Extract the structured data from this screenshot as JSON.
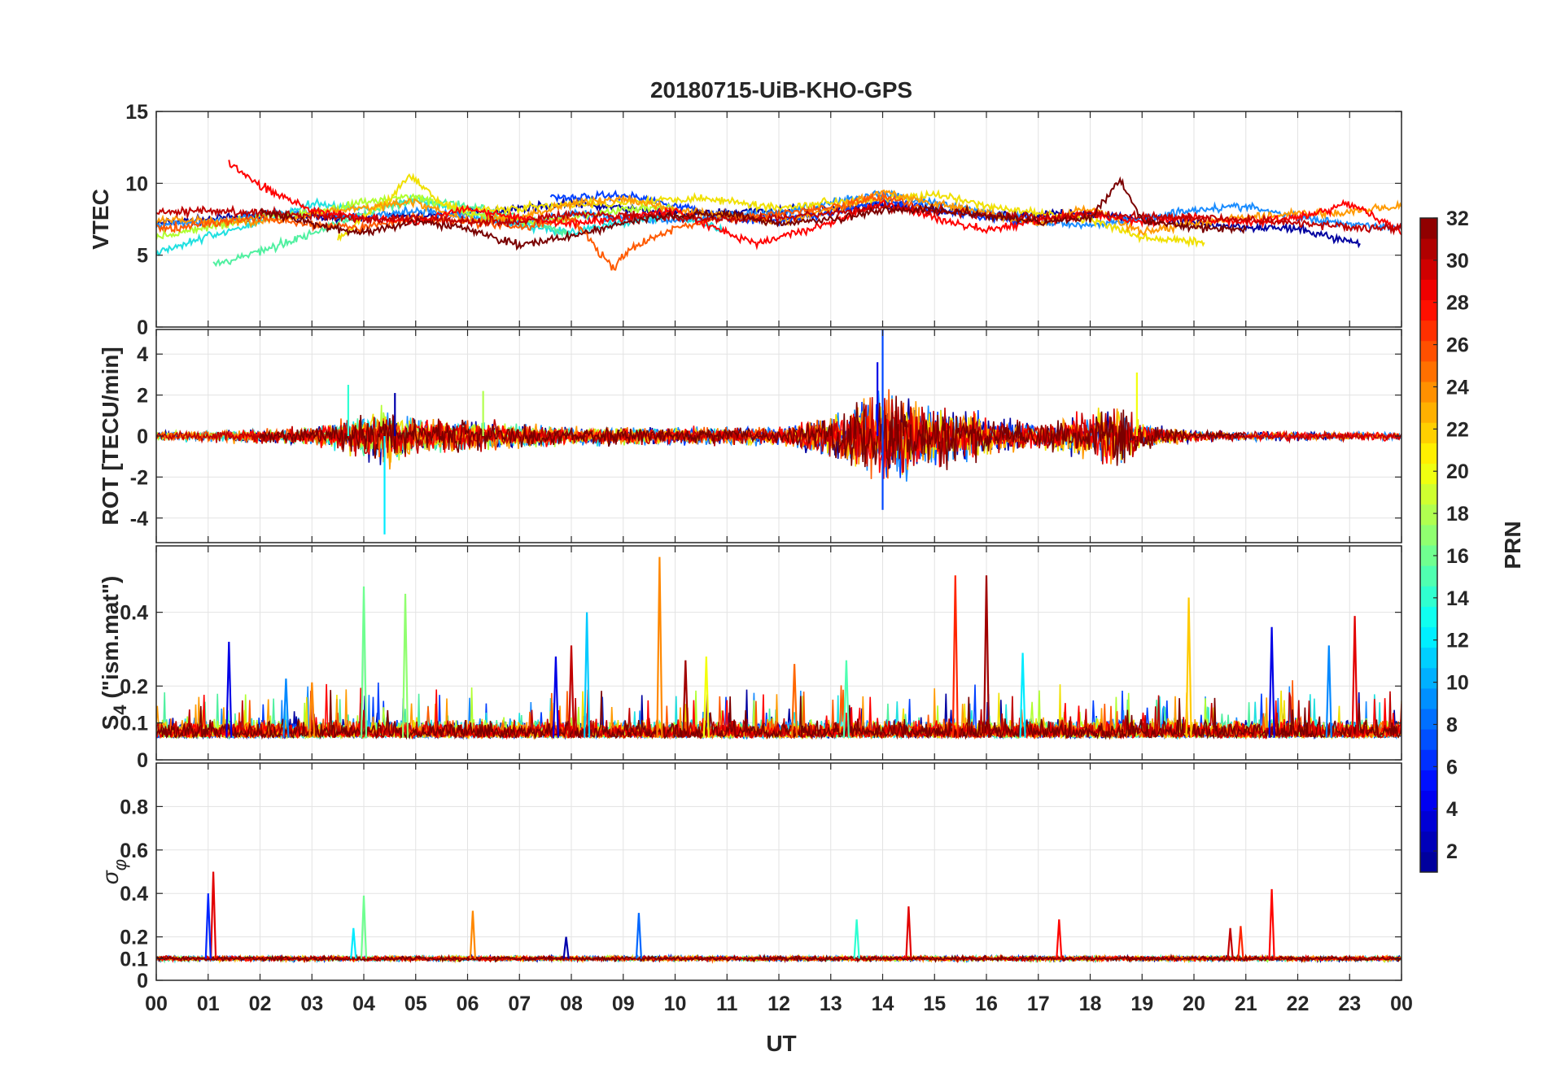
{
  "chart_data": {
    "type": "line",
    "title": "20180715-UiB-KHO-GPS",
    "xlabel": "UT",
    "x_ticks": [
      "00",
      "01",
      "02",
      "03",
      "04",
      "05",
      "06",
      "07",
      "08",
      "09",
      "10",
      "11",
      "12",
      "13",
      "14",
      "15",
      "16",
      "17",
      "18",
      "19",
      "20",
      "21",
      "22",
      "23",
      "00"
    ],
    "xlim": [
      0,
      24
    ],
    "grid": true,
    "colorbar": {
      "label": "PRN",
      "range": [
        1,
        32
      ],
      "ticks": [
        "2",
        "4",
        "6",
        "8",
        "10",
        "12",
        "14",
        "16",
        "18",
        "20",
        "22",
        "24",
        "26",
        "28",
        "30",
        "32"
      ],
      "tick_values": [
        2,
        4,
        6,
        8,
        10,
        12,
        14,
        16,
        18,
        20,
        22,
        24,
        26,
        28,
        30,
        32
      ],
      "colormap": [
        "#00008f",
        "#0000ff",
        "#0080ff",
        "#00ffff",
        "#80ff80",
        "#ffff00",
        "#ff8000",
        "#ff0000",
        "#800000"
      ]
    },
    "panels": [
      {
        "id": "vtec",
        "ylabel": "VTEC",
        "ylim": [
          0,
          15
        ],
        "y_ticks": [
          0,
          5,
          10,
          15
        ],
        "y_tick_labels": [
          "0",
          "5",
          "10",
          "15"
        ],
        "series": [
          {
            "prn": 1,
            "color": "#0000a0",
            "x": [
              0,
              2,
              4,
              6,
              8,
              10,
              12,
              14,
              16,
              18,
              20,
              22,
              23.2
            ],
            "y": [
              7.2,
              7.8,
              7.6,
              7.9,
              8.6,
              7.9,
              8.1,
              8.4,
              7.8,
              7.9,
              7.2,
              6.8,
              5.8
            ]
          },
          {
            "prn": 4,
            "color": "#0040ff",
            "x": [
              7.6,
              8,
              9,
              10,
              11,
              12,
              13,
              14,
              15,
              16,
              17
            ],
            "y": [
              9.1,
              9.0,
              9.2,
              8.5,
              7.6,
              7.4,
              7.9,
              8.8,
              8.2,
              7.6,
              7.4
            ]
          },
          {
            "prn": 8,
            "color": "#1a8cff",
            "x": [
              0,
              1,
              2,
              3,
              4,
              5,
              6,
              7,
              8,
              9,
              10,
              11,
              12,
              13,
              14,
              15,
              16,
              17,
              18,
              19,
              20,
              21,
              22,
              23,
              24
            ],
            "y": [
              7.0,
              7.4,
              7.8,
              8.0,
              7.6,
              8.1,
              7.7,
              7.2,
              7.9,
              7.6,
              7.4,
              7.7,
              7.9,
              8.7,
              9.3,
              8.6,
              8.0,
              7.3,
              7.1,
              7.5,
              8.2,
              8.4,
              7.6,
              7.2,
              6.9
            ]
          },
          {
            "prn": 11,
            "color": "#20e0e0",
            "x": [
              0,
              1,
              2,
              3,
              4,
              5,
              6,
              7,
              8,
              9,
              10,
              11
            ],
            "y": [
              5.2,
              6.3,
              7.3,
              8.6,
              8.2,
              8.9,
              7.9,
              7.1,
              6.6,
              7.3,
              7.8,
              6.7
            ]
          },
          {
            "prn": 14,
            "color": "#50f0a0",
            "x": [
              1.1,
              2,
              3,
              4,
              5,
              6,
              7,
              8
            ],
            "y": [
              4.3,
              5.3,
              6.5,
              7.9,
              8.9,
              8.4,
              7.6,
              6.4
            ]
          },
          {
            "prn": 18,
            "color": "#b0ff30",
            "x": [
              0,
              1,
              2,
              3,
              4,
              5,
              6,
              7,
              8,
              9,
              10
            ],
            "y": [
              6.3,
              6.9,
              7.7,
              7.9,
              8.7,
              9.1,
              7.9,
              7.3,
              7.6,
              8.2,
              8.4
            ]
          },
          {
            "prn": 20,
            "color": "#f0e000",
            "x": [
              3.5,
              4,
              4.5,
              4.9,
              5.5,
              6,
              10.5,
              12,
              13,
              14,
              15,
              16,
              17,
              18,
              19,
              20.2
            ],
            "y": [
              6.1,
              7.6,
              8.9,
              10.6,
              8.6,
              8.1,
              9.0,
              8.3,
              8.7,
              8.9,
              9.2,
              8.4,
              7.9,
              7.5,
              6.2,
              5.9
            ]
          },
          {
            "prn": 23,
            "color": "#ff9a00",
            "x": [
              0,
              2,
              3,
              4,
              5,
              6,
              7,
              8,
              9,
              10,
              11,
              12,
              13,
              14,
              15,
              16,
              17,
              18,
              19,
              20,
              21,
              22,
              23,
              24
            ],
            "y": [
              7.5,
              7.3,
              7.9,
              8.3,
              8.7,
              7.4,
              7.6,
              8.6,
              8.9,
              8.2,
              7.7,
              7.3,
              8.2,
              9.4,
              8.6,
              7.9,
              7.2,
              8.3,
              6.6,
              7.2,
              7.6,
              7.9,
              8.0,
              8.4
            ]
          },
          {
            "prn": 25,
            "color": "#ff5a00",
            "x": [
              0,
              1,
              2,
              3,
              4,
              5,
              6,
              7,
              8,
              8.8,
              9.2,
              10,
              11,
              12,
              13,
              14,
              15
            ],
            "y": [
              6.8,
              7.2,
              7.6,
              7.1,
              6.9,
              7.6,
              7.3,
              6.9,
              7.6,
              4.1,
              5.6,
              6.9,
              7.6,
              7.9,
              8.4,
              9.1,
              8.1
            ]
          },
          {
            "prn": 27,
            "color": "#ff0000",
            "x": [
              1.4,
              2,
              3,
              4,
              5,
              6,
              7,
              8,
              9,
              10,
              11.5,
              12,
              13,
              14,
              15,
              16,
              17,
              18,
              19,
              20,
              21,
              22,
              23,
              24
            ],
            "y": [
              11.4,
              9.8,
              8.1,
              7.6,
              7.3,
              8.3,
              7.6,
              7.2,
              7.6,
              8.1,
              5.8,
              6.2,
              7.3,
              8.6,
              7.6,
              6.7,
              7.4,
              7.9,
              7.3,
              7.6,
              7.3,
              7.6,
              8.6,
              6.6
            ]
          },
          {
            "prn": 30,
            "color": "#c00000",
            "x": [
              0,
              1,
              2,
              3,
              4,
              5,
              6,
              7,
              8,
              9,
              10,
              11,
              12,
              13,
              14,
              15,
              16,
              17,
              18,
              19,
              20,
              21,
              22,
              23,
              24
            ],
            "y": [
              8.0,
              8.1,
              7.9,
              7.8,
              7.5,
              7.6,
              7.4,
              7.3,
              7.9,
              7.8,
              7.6,
              7.5,
              7.6,
              7.9,
              8.3,
              8.1,
              7.8,
              7.6,
              7.9,
              7.7,
              7.6,
              7.5,
              7.2,
              7.0,
              6.8
            ]
          },
          {
            "prn": 32,
            "color": "#7a0000",
            "x": [
              2,
              3,
              4,
              5,
              6,
              7,
              8,
              9,
              10,
              11,
              12,
              13,
              14,
              15,
              16,
              17,
              18,
              18.6,
              19,
              20,
              21
            ],
            "y": [
              8.1,
              7.2,
              6.5,
              7.4,
              6.8,
              5.7,
              6.3,
              7.2,
              7.8,
              7.9,
              7.2,
              7.5,
              8.1,
              8.2,
              7.8,
              7.3,
              7.6,
              10.2,
              7.4,
              6.9,
              6.8
            ]
          }
        ]
      },
      {
        "id": "rot",
        "ylabel": "ROT [TECU/min]",
        "ylim": [
          -5.2,
          5.2
        ],
        "y_ticks": [
          -4,
          -2,
          0,
          2,
          4
        ],
        "y_tick_labels": [
          "-4",
          "-2",
          "0",
          "2",
          "4"
        ],
        "activity_profile": {
          "x": [
            0,
            3,
            4,
            4.5,
            5,
            6,
            8,
            10,
            12,
            13,
            14,
            15,
            16,
            17,
            18,
            18.6,
            19,
            20,
            22,
            24
          ],
          "amplitude": [
            0.25,
            0.5,
            1.2,
            1.6,
            1.0,
            0.9,
            0.5,
            0.5,
            0.5,
            1.2,
            2.6,
            1.8,
            1.2,
            0.8,
            1.4,
            1.8,
            0.8,
            0.3,
            0.25,
            0.25
          ]
        },
        "spikes": [
          {
            "x": 4.4,
            "y": -4.8,
            "prn": 12
          },
          {
            "x": 14.0,
            "y": 5.3,
            "prn": 7
          },
          {
            "x": 14.0,
            "y": -3.6,
            "prn": 7
          },
          {
            "x": 13.9,
            "y": 3.6,
            "prn": 4
          },
          {
            "x": 18.9,
            "y": 3.1,
            "prn": 20
          },
          {
            "x": 3.7,
            "y": 2.5,
            "prn": 14
          },
          {
            "x": 4.6,
            "y": 2.1,
            "prn": 2
          },
          {
            "x": 6.3,
            "y": 2.2,
            "prn": 18
          }
        ]
      },
      {
        "id": "s4",
        "ylabel": "S",
        "ylabel_sub": "4",
        "ylabel_suffix": " (\"ism.mat\")",
        "ylim": [
          0,
          0.58
        ],
        "y_ticks": [
          0,
          0.1,
          0.2,
          0.4
        ],
        "y_tick_labels": [
          "0",
          "0.1",
          "0.2",
          "0.4"
        ],
        "baseline": 0.06,
        "spikes": [
          {
            "x": 9.7,
            "y": 0.55,
            "prn": 24
          },
          {
            "x": 15.4,
            "y": 0.5,
            "prn": 27
          },
          {
            "x": 16.0,
            "y": 0.5,
            "prn": 31
          },
          {
            "x": 4.0,
            "y": 0.47,
            "prn": 16
          },
          {
            "x": 4.8,
            "y": 0.45,
            "prn": 17
          },
          {
            "x": 8.3,
            "y": 0.4,
            "prn": 11
          },
          {
            "x": 23.1,
            "y": 0.39,
            "prn": 29
          },
          {
            "x": 19.9,
            "y": 0.44,
            "prn": 22
          },
          {
            "x": 21.5,
            "y": 0.36,
            "prn": 4
          },
          {
            "x": 1.4,
            "y": 0.32,
            "prn": 4
          },
          {
            "x": 8.0,
            "y": 0.31,
            "prn": 30
          },
          {
            "x": 7.7,
            "y": 0.28,
            "prn": 4
          },
          {
            "x": 10.2,
            "y": 0.27,
            "prn": 31
          },
          {
            "x": 10.6,
            "y": 0.28,
            "prn": 20
          },
          {
            "x": 12.3,
            "y": 0.26,
            "prn": 25
          },
          {
            "x": 13.3,
            "y": 0.27,
            "prn": 15
          },
          {
            "x": 16.7,
            "y": 0.29,
            "prn": 12
          },
          {
            "x": 22.6,
            "y": 0.31,
            "prn": 9
          },
          {
            "x": 2.5,
            "y": 0.22,
            "prn": 9
          },
          {
            "x": 3.0,
            "y": 0.21,
            "prn": 24
          }
        ]
      },
      {
        "id": "sigphi",
        "ylabel": "σ",
        "ylabel_sub": "φ",
        "ylim": [
          0,
          1.0
        ],
        "y_ticks": [
          0,
          0.1,
          0.2,
          0.4,
          0.6,
          0.8
        ],
        "y_tick_labels": [
          "0",
          "0.1",
          "0.2",
          "0.4",
          "0.6",
          "0.8"
        ],
        "baseline": 0.1,
        "spikes": [
          {
            "x": 1.1,
            "y": 0.5,
            "prn": 29
          },
          {
            "x": 1.0,
            "y": 0.4,
            "prn": 6
          },
          {
            "x": 21.5,
            "y": 0.42,
            "prn": 28
          },
          {
            "x": 4.0,
            "y": 0.39,
            "prn": 16
          },
          {
            "x": 14.5,
            "y": 0.34,
            "prn": 29
          },
          {
            "x": 6.1,
            "y": 0.32,
            "prn": 24
          },
          {
            "x": 9.3,
            "y": 0.31,
            "prn": 8
          },
          {
            "x": 13.5,
            "y": 0.28,
            "prn": 14
          },
          {
            "x": 17.4,
            "y": 0.28,
            "prn": 28
          },
          {
            "x": 20.7,
            "y": 0.24,
            "prn": 30
          },
          {
            "x": 20.9,
            "y": 0.25,
            "prn": 27
          },
          {
            "x": 3.8,
            "y": 0.24,
            "prn": 12
          },
          {
            "x": 7.9,
            "y": 0.2,
            "prn": 2
          }
        ]
      }
    ]
  }
}
